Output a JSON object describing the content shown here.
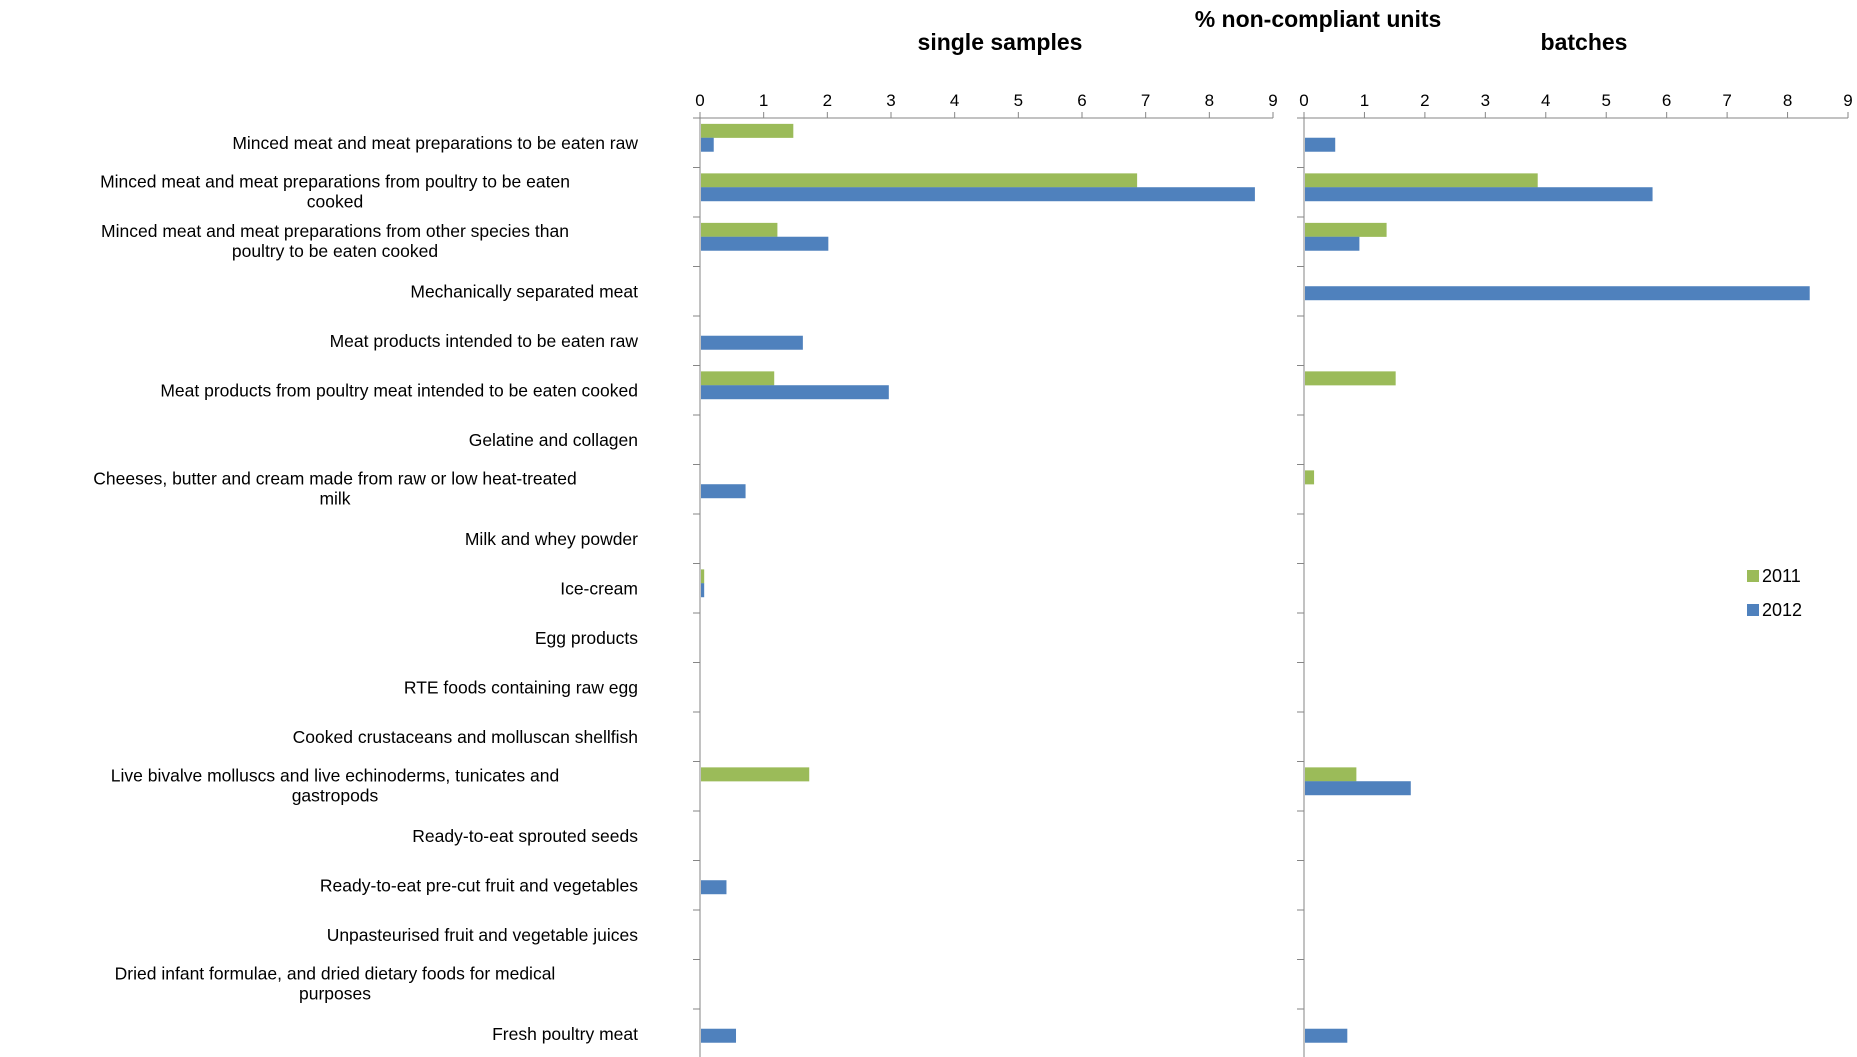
{
  "chart_data": {
    "type": "bar",
    "orientation": "horizontal",
    "title": "% non-compliant units",
    "legend": {
      "placement": "right",
      "entries": [
        "2011",
        "2012"
      ]
    },
    "colors": {
      "2011": "#9BBB59",
      "2012": "#4F81BD"
    },
    "grid": false,
    "categories": [
      "Minced meat and meat preparations to be eaten raw",
      "Minced meat and meat preparations from poultry to be eaten cooked",
      "Minced meat and meat preparations from other species than poultry to be eaten cooked",
      "Mechanically separated meat",
      "Meat products intended to be eaten raw",
      "Meat products from poultry meat intended to be eaten cooked",
      "Gelatine and collagen",
      "Cheeses, butter and cream made from raw or low heat-treated milk",
      "Milk and whey powder",
      "Ice-cream",
      "Egg products",
      "RTE foods containing raw egg",
      "Cooked crustaceans and molluscan shellfish",
      "Live bivalve molluscs and live echinoderms, tunicates and gastropods",
      "Ready-to-eat sprouted seeds",
      "Ready-to-eat pre-cut fruit and vegetables",
      "Unpasteurised fruit and vegetable juices",
      "Dried infant formulae, and dried dietary foods for medical purposes",
      "Fresh poultry meat"
    ],
    "category_lines": [
      [
        "Minced meat and meat preparations to be eaten raw"
      ],
      [
        "Minced meat and meat preparations from poultry to be eaten",
        "cooked"
      ],
      [
        "Minced meat and meat preparations from other species than",
        "poultry to be eaten cooked"
      ],
      [
        "Mechanically separated meat"
      ],
      [
        "Meat products intended to be eaten raw"
      ],
      [
        "Meat products from poultry meat intended to be eaten cooked"
      ],
      [
        "Gelatine and collagen"
      ],
      [
        "Cheeses, butter and cream made from raw or low heat-treated",
        "milk"
      ],
      [
        "Milk and whey powder"
      ],
      [
        "Ice-cream"
      ],
      [
        "Egg products"
      ],
      [
        "RTE foods containing raw egg"
      ],
      [
        "Cooked crustaceans and molluscan shellfish"
      ],
      [
        "Live bivalve molluscs and live echinoderms, tunicates and",
        "gastropods"
      ],
      [
        "Ready-to-eat sprouted seeds"
      ],
      [
        "Ready-to-eat pre-cut fruit and vegetables"
      ],
      [
        "Unpasteurised fruit and vegetable juices"
      ],
      [
        "Dried infant formulae, and dried dietary foods for medical",
        "purposes"
      ],
      [
        "Fresh poultry meat"
      ]
    ],
    "panels": [
      {
        "name": "single samples",
        "xlim": [
          0,
          9
        ],
        "ticks": [
          "0",
          "1",
          "2",
          "3",
          "4",
          "5",
          "6",
          "7",
          "8",
          "9"
        ],
        "series": [
          {
            "name": "2011",
            "values": [
              1.45,
              6.85,
              1.2,
              0,
              0,
              1.15,
              0,
              0,
              0,
              0.05,
              0,
              0,
              0,
              1.7,
              0,
              0,
              0,
              0,
              0
            ]
          },
          {
            "name": "2012",
            "values": [
              0.2,
              8.7,
              2.0,
              0,
              1.6,
              2.95,
              0,
              0.7,
              0,
              0.05,
              0,
              0,
              0,
              0,
              0,
              0.4,
              0,
              0,
              0.55
            ]
          }
        ]
      },
      {
        "name": "batches",
        "xlim": [
          0,
          9
        ],
        "ticks": [
          "0",
          "1",
          "2",
          "3",
          "4",
          "5",
          "6",
          "7",
          "8",
          "9"
        ],
        "series": [
          {
            "name": "2011",
            "values": [
              0,
              3.85,
              1.35,
              0,
              0,
              1.5,
              0,
              0.15,
              0,
              0,
              0,
              0,
              0,
              0.85,
              0,
              0,
              0,
              0,
              0
            ]
          },
          {
            "name": "2012",
            "values": [
              0.5,
              5.75,
              0.9,
              8.35,
              0,
              0,
              0,
              0,
              0,
              0,
              0,
              0,
              0,
              1.75,
              0,
              0,
              0,
              0,
              0.7
            ]
          }
        ]
      }
    ]
  }
}
